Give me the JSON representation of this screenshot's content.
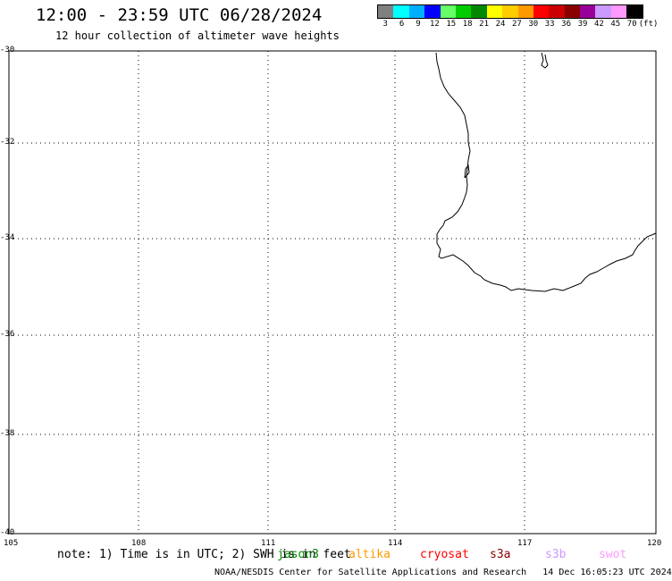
{
  "header": {
    "title": "12:00 - 23:59 UTC 06/28/2024",
    "subtitle": "12 hour collection of altimeter wave heights"
  },
  "colorbar": {
    "colors": [
      "#808080",
      "#00ffff",
      "#00b0ff",
      "#0000ff",
      "#66ff66",
      "#00cc00",
      "#008800",
      "#ffff00",
      "#ffcc00",
      "#ff9900",
      "#ff0000",
      "#cc0000",
      "#880000",
      "#990099",
      "#cc99ff",
      "#ff99ff",
      "#000000"
    ],
    "labels": [
      "3",
      "6",
      "9",
      "12",
      "15",
      "18",
      "21",
      "24",
      "27",
      "30",
      "33",
      "36",
      "39",
      "42",
      "45",
      "70",
      "(ft)"
    ]
  },
  "map": {
    "lon_labels": [
      "105",
      "108",
      "111",
      "114",
      "117",
      "120"
    ],
    "lat_labels": [
      "-30",
      "-32",
      "-34",
      "-36",
      "-38",
      "-40"
    ]
  },
  "note": "note: 1) Time is in UTC; 2) SWH is in feet",
  "satellites": [
    {
      "name": "jason3",
      "color": "#008800"
    },
    {
      "name": "altika",
      "color": "#ff9900"
    },
    {
      "name": "cryosat",
      "color": "#ff0000"
    },
    {
      "name": "s3a",
      "color": "#880000"
    },
    {
      "name": "s3b",
      "color": "#cc99ff"
    },
    {
      "name": "swot",
      "color": "#ff99ff"
    }
  ],
  "footer": "NOAA/NESDIS Center for Satellite Applications and Research   14 Dec 16:05:23 UTC 2024"
}
